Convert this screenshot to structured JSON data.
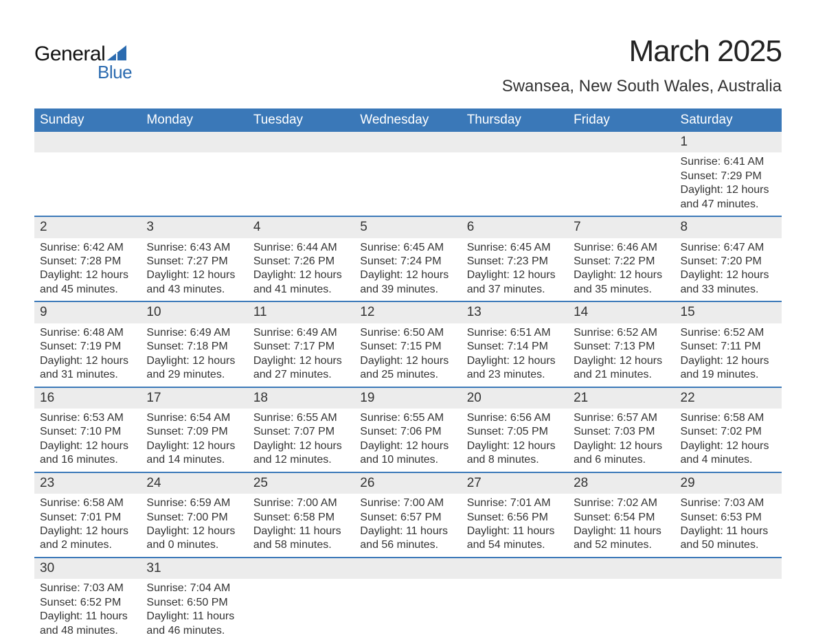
{
  "brand": {
    "line1": "General",
    "line2": "Blue",
    "accent_color": "#2b6bb0"
  },
  "title": {
    "month": "March 2025",
    "location": "Swansea, New South Wales, Australia"
  },
  "style": {
    "header_bg": "#3a78b8",
    "header_fg": "#ffffff",
    "daynum_bg": "#ececec",
    "row_border": "#3a78b8",
    "body_bg": "#ffffff",
    "text_color": "#333333",
    "month_fontsize": 44,
    "location_fontsize": 24,
    "weekday_fontsize": 19,
    "daynum_fontsize": 19,
    "detail_fontsize": 16
  },
  "weekdays": [
    "Sunday",
    "Monday",
    "Tuesday",
    "Wednesday",
    "Thursday",
    "Friday",
    "Saturday"
  ],
  "weeks": [
    [
      null,
      null,
      null,
      null,
      null,
      null,
      {
        "n": "1",
        "sr": "Sunrise: 6:41 AM",
        "ss": "Sunset: 7:29 PM",
        "d1": "Daylight: 12 hours",
        "d2": "and 47 minutes."
      }
    ],
    [
      {
        "n": "2",
        "sr": "Sunrise: 6:42 AM",
        "ss": "Sunset: 7:28 PM",
        "d1": "Daylight: 12 hours",
        "d2": "and 45 minutes."
      },
      {
        "n": "3",
        "sr": "Sunrise: 6:43 AM",
        "ss": "Sunset: 7:27 PM",
        "d1": "Daylight: 12 hours",
        "d2": "and 43 minutes."
      },
      {
        "n": "4",
        "sr": "Sunrise: 6:44 AM",
        "ss": "Sunset: 7:26 PM",
        "d1": "Daylight: 12 hours",
        "d2": "and 41 minutes."
      },
      {
        "n": "5",
        "sr": "Sunrise: 6:45 AM",
        "ss": "Sunset: 7:24 PM",
        "d1": "Daylight: 12 hours",
        "d2": "and 39 minutes."
      },
      {
        "n": "6",
        "sr": "Sunrise: 6:45 AM",
        "ss": "Sunset: 7:23 PM",
        "d1": "Daylight: 12 hours",
        "d2": "and 37 minutes."
      },
      {
        "n": "7",
        "sr": "Sunrise: 6:46 AM",
        "ss": "Sunset: 7:22 PM",
        "d1": "Daylight: 12 hours",
        "d2": "and 35 minutes."
      },
      {
        "n": "8",
        "sr": "Sunrise: 6:47 AM",
        "ss": "Sunset: 7:20 PM",
        "d1": "Daylight: 12 hours",
        "d2": "and 33 minutes."
      }
    ],
    [
      {
        "n": "9",
        "sr": "Sunrise: 6:48 AM",
        "ss": "Sunset: 7:19 PM",
        "d1": "Daylight: 12 hours",
        "d2": "and 31 minutes."
      },
      {
        "n": "10",
        "sr": "Sunrise: 6:49 AM",
        "ss": "Sunset: 7:18 PM",
        "d1": "Daylight: 12 hours",
        "d2": "and 29 minutes."
      },
      {
        "n": "11",
        "sr": "Sunrise: 6:49 AM",
        "ss": "Sunset: 7:17 PM",
        "d1": "Daylight: 12 hours",
        "d2": "and 27 minutes."
      },
      {
        "n": "12",
        "sr": "Sunrise: 6:50 AM",
        "ss": "Sunset: 7:15 PM",
        "d1": "Daylight: 12 hours",
        "d2": "and 25 minutes."
      },
      {
        "n": "13",
        "sr": "Sunrise: 6:51 AM",
        "ss": "Sunset: 7:14 PM",
        "d1": "Daylight: 12 hours",
        "d2": "and 23 minutes."
      },
      {
        "n": "14",
        "sr": "Sunrise: 6:52 AM",
        "ss": "Sunset: 7:13 PM",
        "d1": "Daylight: 12 hours",
        "d2": "and 21 minutes."
      },
      {
        "n": "15",
        "sr": "Sunrise: 6:52 AM",
        "ss": "Sunset: 7:11 PM",
        "d1": "Daylight: 12 hours",
        "d2": "and 19 minutes."
      }
    ],
    [
      {
        "n": "16",
        "sr": "Sunrise: 6:53 AM",
        "ss": "Sunset: 7:10 PM",
        "d1": "Daylight: 12 hours",
        "d2": "and 16 minutes."
      },
      {
        "n": "17",
        "sr": "Sunrise: 6:54 AM",
        "ss": "Sunset: 7:09 PM",
        "d1": "Daylight: 12 hours",
        "d2": "and 14 minutes."
      },
      {
        "n": "18",
        "sr": "Sunrise: 6:55 AM",
        "ss": "Sunset: 7:07 PM",
        "d1": "Daylight: 12 hours",
        "d2": "and 12 minutes."
      },
      {
        "n": "19",
        "sr": "Sunrise: 6:55 AM",
        "ss": "Sunset: 7:06 PM",
        "d1": "Daylight: 12 hours",
        "d2": "and 10 minutes."
      },
      {
        "n": "20",
        "sr": "Sunrise: 6:56 AM",
        "ss": "Sunset: 7:05 PM",
        "d1": "Daylight: 12 hours",
        "d2": "and 8 minutes."
      },
      {
        "n": "21",
        "sr": "Sunrise: 6:57 AM",
        "ss": "Sunset: 7:03 PM",
        "d1": "Daylight: 12 hours",
        "d2": "and 6 minutes."
      },
      {
        "n": "22",
        "sr": "Sunrise: 6:58 AM",
        "ss": "Sunset: 7:02 PM",
        "d1": "Daylight: 12 hours",
        "d2": "and 4 minutes."
      }
    ],
    [
      {
        "n": "23",
        "sr": "Sunrise: 6:58 AM",
        "ss": "Sunset: 7:01 PM",
        "d1": "Daylight: 12 hours",
        "d2": "and 2 minutes."
      },
      {
        "n": "24",
        "sr": "Sunrise: 6:59 AM",
        "ss": "Sunset: 7:00 PM",
        "d1": "Daylight: 12 hours",
        "d2": "and 0 minutes."
      },
      {
        "n": "25",
        "sr": "Sunrise: 7:00 AM",
        "ss": "Sunset: 6:58 PM",
        "d1": "Daylight: 11 hours",
        "d2": "and 58 minutes."
      },
      {
        "n": "26",
        "sr": "Sunrise: 7:00 AM",
        "ss": "Sunset: 6:57 PM",
        "d1": "Daylight: 11 hours",
        "d2": "and 56 minutes."
      },
      {
        "n": "27",
        "sr": "Sunrise: 7:01 AM",
        "ss": "Sunset: 6:56 PM",
        "d1": "Daylight: 11 hours",
        "d2": "and 54 minutes."
      },
      {
        "n": "28",
        "sr": "Sunrise: 7:02 AM",
        "ss": "Sunset: 6:54 PM",
        "d1": "Daylight: 11 hours",
        "d2": "and 52 minutes."
      },
      {
        "n": "29",
        "sr": "Sunrise: 7:03 AM",
        "ss": "Sunset: 6:53 PM",
        "d1": "Daylight: 11 hours",
        "d2": "and 50 minutes."
      }
    ],
    [
      {
        "n": "30",
        "sr": "Sunrise: 7:03 AM",
        "ss": "Sunset: 6:52 PM",
        "d1": "Daylight: 11 hours",
        "d2": "and 48 minutes."
      },
      {
        "n": "31",
        "sr": "Sunrise: 7:04 AM",
        "ss": "Sunset: 6:50 PM",
        "d1": "Daylight: 11 hours",
        "d2": "and 46 minutes."
      },
      null,
      null,
      null,
      null,
      null
    ]
  ]
}
